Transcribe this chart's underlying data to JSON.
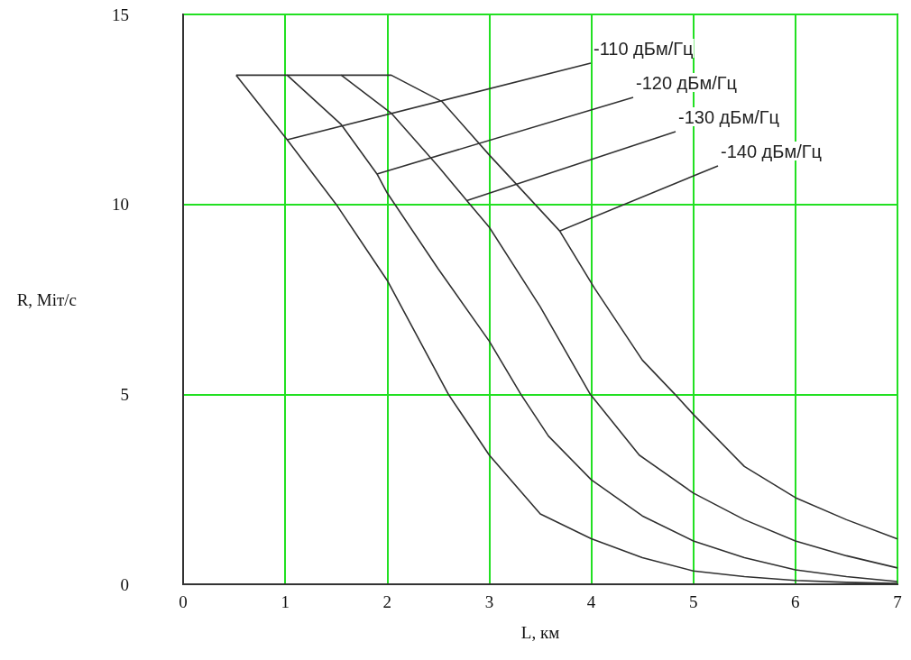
{
  "chart_data": {
    "type": "line",
    "xlabel": "L, км",
    "ylabel": "R, Міт/с",
    "xlim": [
      0,
      7
    ],
    "xticks": [
      0,
      1,
      2,
      3,
      4,
      5,
      6,
      7
    ],
    "ylim": [
      0,
      15
    ],
    "yticks": [
      0,
      5,
      10,
      15
    ],
    "grid": true,
    "marker": "none",
    "line_style": "solid",
    "series": [
      {
        "color": "#303030",
        "x": [
          0.52,
          1.02,
          1.5,
          2.0,
          2.6,
          3.0,
          3.5,
          4.0,
          4.5,
          5.0,
          5.5,
          6.0,
          6.5,
          7.0
        ],
        "values": [
          13.4,
          11.7,
          10.0,
          8.0,
          5.0,
          3.4,
          1.85,
          1.2,
          0.7,
          0.35,
          0.2,
          0.1,
          0.05,
          0.02
        ]
      },
      {
        "color": "#303030",
        "x": [
          0.52,
          1.02,
          1.55,
          1.9,
          2.0,
          2.5,
          3.0,
          3.31,
          3.58,
          4.0,
          4.5,
          5.0,
          5.5,
          6.0,
          6.5,
          7.0
        ],
        "values": [
          13.4,
          13.4,
          12.1,
          10.8,
          10.3,
          8.3,
          6.4,
          5.0,
          3.9,
          2.75,
          1.8,
          1.14,
          0.7,
          0.38,
          0.2,
          0.07
        ]
      },
      {
        "color": "#303030",
        "x": [
          1.02,
          1.55,
          2.04,
          2.5,
          2.78,
          3.0,
          3.5,
          3.99,
          4.47,
          5.0,
          5.5,
          6.0,
          6.5,
          7.0
        ],
        "values": [
          13.4,
          13.4,
          12.4,
          11.0,
          10.1,
          9.4,
          7.3,
          5.0,
          3.4,
          2.4,
          1.7,
          1.14,
          0.75,
          0.43
        ]
      },
      {
        "color": "#303030",
        "x": [
          1.55,
          2.04,
          2.54,
          3.0,
          3.69,
          4.03,
          4.5,
          4.82,
          5.0,
          5.5,
          6.0,
          6.5,
          7.0
        ],
        "values": [
          13.4,
          13.4,
          12.7,
          11.3,
          9.3,
          7.8,
          5.9,
          5.0,
          4.47,
          3.1,
          2.28,
          1.7,
          1.19
        ]
      }
    ],
    "annotations": [
      {
        "text": "-110 дБм/Гц",
        "x": 1.02,
        "y": 11.7
      },
      {
        "text": "-120 дБм/Гц",
        "x": 1.9,
        "y": 10.8
      },
      {
        "text": "-130 дБм/Гц",
        "x": 2.78,
        "y": 10.1
      },
      {
        "text": "-140 дБм/Гц",
        "x": 3.69,
        "y": 9.3
      }
    ]
  }
}
